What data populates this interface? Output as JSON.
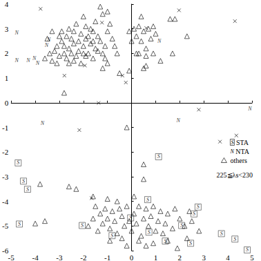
{
  "chart_data": {
    "type": "scatter",
    "xlim": [
      -5,
      5
    ],
    "xticks": [
      -5,
      -4,
      -3,
      -2,
      -1,
      0,
      1,
      2,
      3,
      4,
      5
    ],
    "ylim": [
      -6,
      4
    ],
    "yticks": [
      -6,
      -5,
      -4,
      -3,
      -2,
      -1,
      0,
      1,
      2,
      3,
      4
    ],
    "grid": false,
    "legend": "right",
    "annotations": [
      "225≦λs<230"
    ],
    "series": [
      {
        "name": "STA",
        "marker": "S",
        "color": "#000000",
        "values": [
          [
            -4.71,
            -2.44
          ],
          [
            -4.49,
            -3.18
          ],
          [
            -4.32,
            -3.51
          ],
          [
            -4.66,
            -4.92
          ],
          [
            1.12,
            -2.19
          ],
          [
            0.67,
            -3.93
          ],
          [
            2.08,
            -4.98
          ],
          [
            2.45,
            -5.7
          ],
          [
            2.76,
            -4.23
          ],
          [
            2.59,
            -4.51
          ],
          [
            3.73,
            -5.31
          ],
          [
            4.29,
            -5.53
          ],
          [
            4.8,
            -5.97
          ],
          [
            -2.05,
            -4.98
          ],
          [
            -0.81,
            -5.39
          ],
          [
            1.4,
            -5.61
          ],
          [
            0.72,
            -5.25
          ],
          [
            -0.04,
            -4.67
          ]
        ]
      },
      {
        "name": "NTA",
        "marker": "N",
        "color": "#000000",
        "values": [
          [
            -4.77,
            2.84
          ],
          [
            -4.77,
            1.73
          ],
          [
            -4.29,
            1.73
          ],
          [
            -4.04,
            1.79
          ],
          [
            -3.9,
            1.6
          ],
          [
            -3.53,
            2.34
          ],
          [
            -3.44,
            2.56
          ],
          [
            -3.7,
            -0.83
          ],
          [
            1.15,
            2.5
          ],
          [
            1.94,
            -0.72
          ],
          [
            4.91,
            -0.23
          ]
        ]
      },
      {
        "name": "others",
        "marker": "triangle",
        "color": "#000000",
        "values": [
          [
            -3.4,
            2.0
          ],
          [
            -3.2,
            2.1
          ],
          [
            -3.0,
            1.9
          ],
          [
            -3.1,
            2.3
          ],
          [
            -2.9,
            2.5
          ],
          [
            -2.8,
            2.0
          ],
          [
            -2.7,
            1.8
          ],
          [
            -2.6,
            2.2
          ],
          [
            -2.5,
            2.6
          ],
          [
            -2.4,
            2.4
          ],
          [
            -2.3,
            1.9
          ],
          [
            -2.2,
            2.1
          ],
          [
            -2.1,
            2.8
          ],
          [
            -2.0,
            2.3
          ],
          [
            -1.9,
            2.6
          ],
          [
            -1.8,
            2.0
          ],
          [
            -1.7,
            2.4
          ],
          [
            -1.6,
            1.8
          ],
          [
            -1.5,
            2.2
          ],
          [
            -1.4,
            2.7
          ],
          [
            -1.3,
            2.5
          ],
          [
            -1.2,
            2.0
          ],
          [
            -1.1,
            2.3
          ],
          [
            -1.0,
            2.9
          ],
          [
            -3.5,
            2.6
          ],
          [
            -3.3,
            1.7
          ],
          [
            -2.9,
            2.9
          ],
          [
            -2.6,
            3.0
          ],
          [
            -2.3,
            3.2
          ],
          [
            -2.0,
            3.5
          ],
          [
            -1.7,
            3.0
          ],
          [
            -1.5,
            3.3
          ],
          [
            -1.2,
            3.6
          ],
          [
            -0.9,
            3.2
          ],
          [
            -0.8,
            2.6
          ],
          [
            -2.7,
            2.7
          ],
          [
            -2.4,
            1.7
          ],
          [
            -2.1,
            1.6
          ],
          [
            -1.9,
            1.9
          ],
          [
            -1.6,
            2.9
          ],
          [
            -3.0,
            2.7
          ],
          [
            -2.5,
            2.0
          ],
          [
            -2.2,
            2.5
          ],
          [
            -1.8,
            2.7
          ],
          [
            -1.4,
            2.1
          ],
          [
            -1.1,
            1.8
          ],
          [
            -0.7,
            2.3
          ],
          [
            -3.6,
            1.8
          ],
          [
            -2.8,
            2.3
          ],
          [
            -2.0,
            2.0
          ],
          [
            -1.3,
            3.9
          ],
          [
            -1.0,
            3.7
          ],
          [
            -2.6,
            1.6
          ],
          [
            -3.3,
            2.9
          ],
          [
            -1.9,
            3.1
          ],
          [
            -2.4,
            2.9
          ],
          [
            -1.6,
            2.5
          ],
          [
            -3.1,
            1.6
          ],
          [
            -0.6,
            2.0
          ],
          [
            -1.2,
            1.4
          ],
          [
            -2.8,
            0.4
          ],
          [
            -0.5,
            1.2
          ],
          [
            -1.0,
            1.6
          ],
          [
            0.1,
            3.0
          ],
          [
            0.2,
            2.7
          ],
          [
            0.3,
            3.1
          ],
          [
            0.4,
            2.5
          ],
          [
            0.5,
            2.9
          ],
          [
            0.6,
            2.2
          ],
          [
            0.7,
            3.0
          ],
          [
            0.5,
            1.4
          ],
          [
            0.6,
            1.5
          ],
          [
            0.8,
            2.6
          ],
          [
            0.9,
            3.1
          ],
          [
            1.0,
            2.8
          ],
          [
            0.3,
            2.0
          ],
          [
            0.0,
            2.5
          ],
          [
            1.6,
            3.4
          ],
          [
            1.8,
            3.4
          ],
          [
            1.7,
            2.0
          ],
          [
            1.2,
            1.7
          ],
          [
            -0.1,
            2.9
          ],
          [
            0.2,
            2.0
          ],
          [
            0.9,
            2.0
          ],
          [
            0.4,
            3.5
          ],
          [
            -0.1,
            1.3
          ],
          [
            0.6,
            1.9
          ],
          [
            2.3,
            2.7
          ],
          [
            -0.2,
            -1.0
          ],
          [
            -3.8,
            -3.3
          ],
          [
            -4.0,
            -4.9
          ],
          [
            -3.6,
            -4.8
          ],
          [
            -2.6,
            -3.4
          ],
          [
            -2.3,
            -3.5
          ],
          [
            -1.6,
            -3.8
          ],
          [
            0.5,
            -2.5
          ],
          [
            0.5,
            -3.1
          ],
          [
            -1.5,
            -4.2
          ],
          [
            -1.3,
            -4.5
          ],
          [
            -1.2,
            -4.9
          ],
          [
            -1.1,
            -4.3
          ],
          [
            -1.0,
            -4.7
          ],
          [
            -0.9,
            -5.1
          ],
          [
            -0.8,
            -4.4
          ],
          [
            -0.7,
            -4.8
          ],
          [
            -0.6,
            -5.3
          ],
          [
            -0.5,
            -4.3
          ],
          [
            -0.4,
            -4.6
          ],
          [
            -0.3,
            -5.0
          ],
          [
            -0.2,
            -4.2
          ],
          [
            -0.1,
            -4.8
          ],
          [
            0.0,
            -5.2
          ],
          [
            0.1,
            -4.5
          ],
          [
            0.2,
            -4.9
          ],
          [
            0.3,
            -4.2
          ],
          [
            0.4,
            -5.4
          ],
          [
            0.5,
            -4.7
          ],
          [
            0.6,
            -4.3
          ],
          [
            0.7,
            -5.0
          ],
          [
            0.8,
            -4.6
          ],
          [
            0.9,
            -4.2
          ],
          [
            1.0,
            -5.2
          ],
          [
            1.1,
            -4.8
          ],
          [
            1.2,
            -4.4
          ],
          [
            1.4,
            -4.9
          ],
          [
            1.5,
            -4.5
          ],
          [
            1.7,
            -5.1
          ],
          [
            1.8,
            -4.3
          ],
          [
            2.0,
            -4.7
          ],
          [
            2.2,
            -5.0
          ],
          [
            2.4,
            -4.4
          ],
          [
            2.5,
            -4.8
          ],
          [
            -1.4,
            -5.2
          ],
          [
            -0.9,
            -5.6
          ],
          [
            -0.4,
            -5.5
          ],
          [
            0.3,
            -5.6
          ],
          [
            0.9,
            -5.7
          ],
          [
            1.5,
            -5.6
          ],
          [
            1.9,
            -5.9
          ],
          [
            2.3,
            -5.5
          ],
          [
            -1.6,
            -4.7
          ],
          [
            -0.6,
            -4.0
          ],
          [
            0.1,
            -3.8
          ],
          [
            -1.0,
            -3.9
          ],
          [
            0.6,
            -5.8
          ],
          [
            1.3,
            -5.3
          ],
          [
            -0.2,
            -5.8
          ],
          [
            2.8,
            -5.2
          ],
          [
            -1.8,
            -5.0
          ]
        ]
      },
      {
        "marker": "cross",
        "color": "#000000",
        "values": [
          [
            -3.78,
            3.81
          ],
          [
            1.97,
            3.75
          ],
          [
            4.29,
            3.31
          ],
          [
            -1.94,
            1.51
          ],
          [
            -2.79,
            1.1
          ],
          [
            -1.37,
            -0.01
          ],
          [
            -0.38,
            1.1
          ],
          [
            -0.24,
            0.82
          ],
          [
            2.79,
            -0.28
          ],
          [
            3.67,
            -1.58
          ],
          [
            4.35,
            -1.33
          ],
          [
            -1.66,
            -3.87
          ],
          [
            0.61,
            3.03
          ],
          [
            -2.17,
            -1.11
          ],
          [
            -1.23,
            3.25
          ]
        ]
      }
    ]
  }
}
